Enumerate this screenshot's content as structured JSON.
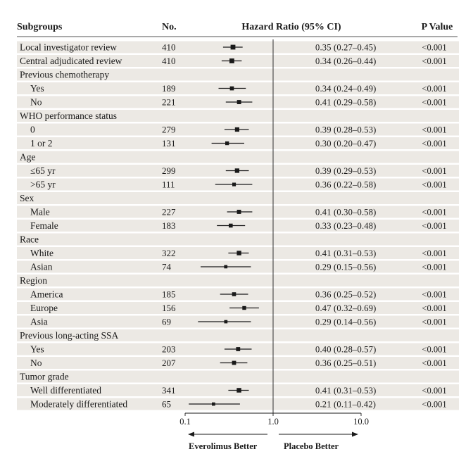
{
  "chart_data": {
    "type": "forest",
    "columns": {
      "subgroups": "Subgroups",
      "n": "No.",
      "hr": "Hazard Ratio (95% CI)",
      "p": "P Value"
    },
    "x_scale": "log",
    "xlim": [
      0.1,
      10.0
    ],
    "ticks": [
      "0.1",
      "1.0",
      "10.0"
    ],
    "reference_line": 1.0,
    "footer": {
      "left": "Everolimus Better",
      "right": "Placebo Better"
    },
    "rows": [
      {
        "label": "Local investigator review",
        "indent": false,
        "n": "410",
        "hr": 0.35,
        "lo": 0.27,
        "hi": 0.45,
        "ci_text": "0.35 (0.27–0.45)",
        "p": "<0.001"
      },
      {
        "label": "Central adjudicated review",
        "indent": false,
        "n": "410",
        "hr": 0.34,
        "lo": 0.26,
        "hi": 0.44,
        "ci_text": "0.34 (0.26–0.44)",
        "p": "<0.001"
      },
      {
        "label": "Previous chemotherapy",
        "header": true
      },
      {
        "label": "Yes",
        "indent": true,
        "n": "189",
        "hr": 0.34,
        "lo": 0.24,
        "hi": 0.49,
        "ci_text": "0.34 (0.24–0.49)",
        "p": "<0.001"
      },
      {
        "label": "No",
        "indent": true,
        "n": "221",
        "hr": 0.41,
        "lo": 0.29,
        "hi": 0.58,
        "ci_text": "0.41 (0.29–0.58)",
        "p": "<0.001"
      },
      {
        "label": "WHO performance status",
        "header": true
      },
      {
        "label": "0",
        "indent": true,
        "n": "279",
        "hr": 0.39,
        "lo": 0.28,
        "hi": 0.53,
        "ci_text": "0.39 (0.28–0.53)",
        "p": "<0.001"
      },
      {
        "label": "1 or 2",
        "indent": true,
        "n": "131",
        "hr": 0.3,
        "lo": 0.2,
        "hi": 0.47,
        "ci_text": "0.30 (0.20–0.47)",
        "p": "<0.001"
      },
      {
        "label": "Age",
        "header": true
      },
      {
        "label": "≤65 yr",
        "indent": true,
        "n": "299",
        "hr": 0.39,
        "lo": 0.29,
        "hi": 0.53,
        "ci_text": "0.39 (0.29–0.53)",
        "p": "<0.001"
      },
      {
        "label": ">65 yr",
        "indent": true,
        "n": "111",
        "hr": 0.36,
        "lo": 0.22,
        "hi": 0.58,
        "ci_text": "0.36 (0.22–0.58)",
        "p": "<0.001"
      },
      {
        "label": "Sex",
        "header": true
      },
      {
        "label": "Male",
        "indent": true,
        "n": "227",
        "hr": 0.41,
        "lo": 0.3,
        "hi": 0.58,
        "ci_text": "0.41 (0.30–0.58)",
        "p": "<0.001"
      },
      {
        "label": "Female",
        "indent": true,
        "n": "183",
        "hr": 0.33,
        "lo": 0.23,
        "hi": 0.48,
        "ci_text": "0.33 (0.23–0.48)",
        "p": "<0.001"
      },
      {
        "label": "Race",
        "header": true
      },
      {
        "label": "White",
        "indent": true,
        "n": "322",
        "hr": 0.41,
        "lo": 0.31,
        "hi": 0.53,
        "ci_text": "0.41 (0.31–0.53)",
        "p": "<0.001"
      },
      {
        "label": "Asian",
        "indent": true,
        "n": "74",
        "hr": 0.29,
        "lo": 0.15,
        "hi": 0.56,
        "ci_text": "0.29 (0.15–0.56)",
        "p": "<0.001"
      },
      {
        "label": "Region",
        "header": true
      },
      {
        "label": "America",
        "indent": true,
        "n": "185",
        "hr": 0.36,
        "lo": 0.25,
        "hi": 0.52,
        "ci_text": "0.36 (0.25–0.52)",
        "p": "<0.001"
      },
      {
        "label": "Europe",
        "indent": true,
        "n": "156",
        "hr": 0.47,
        "lo": 0.32,
        "hi": 0.69,
        "ci_text": "0.47 (0.32–0.69)",
        "p": "<0.001"
      },
      {
        "label": "Asia",
        "indent": true,
        "n": "69",
        "hr": 0.29,
        "lo": 0.14,
        "hi": 0.56,
        "ci_text": "0.29 (0.14–0.56)",
        "p": "<0.001"
      },
      {
        "label": "Previous long-acting SSA",
        "header": true
      },
      {
        "label": "Yes",
        "indent": true,
        "n": "203",
        "hr": 0.4,
        "lo": 0.28,
        "hi": 0.57,
        "ci_text": "0.40 (0.28–0.57)",
        "p": "<0.001"
      },
      {
        "label": "No",
        "indent": true,
        "n": "207",
        "hr": 0.36,
        "lo": 0.25,
        "hi": 0.51,
        "ci_text": "0.36 (0.25–0.51)",
        "p": "<0.001"
      },
      {
        "label": "Tumor grade",
        "header": true
      },
      {
        "label": "Well differentiated",
        "indent": true,
        "n": "341",
        "hr": 0.41,
        "lo": 0.31,
        "hi": 0.53,
        "ci_text": "0.41 (0.31–0.53)",
        "p": "<0.001"
      },
      {
        "label": "Moderately differentiated",
        "indent": true,
        "n": "65",
        "hr": 0.21,
        "lo": 0.11,
        "hi": 0.42,
        "ci_text": "0.21 (0.11–0.42)",
        "p": "<0.001"
      }
    ]
  },
  "colors": {
    "band": "#ece9e4",
    "text": "#1a1a1a",
    "line": "#1a1a1a"
  }
}
